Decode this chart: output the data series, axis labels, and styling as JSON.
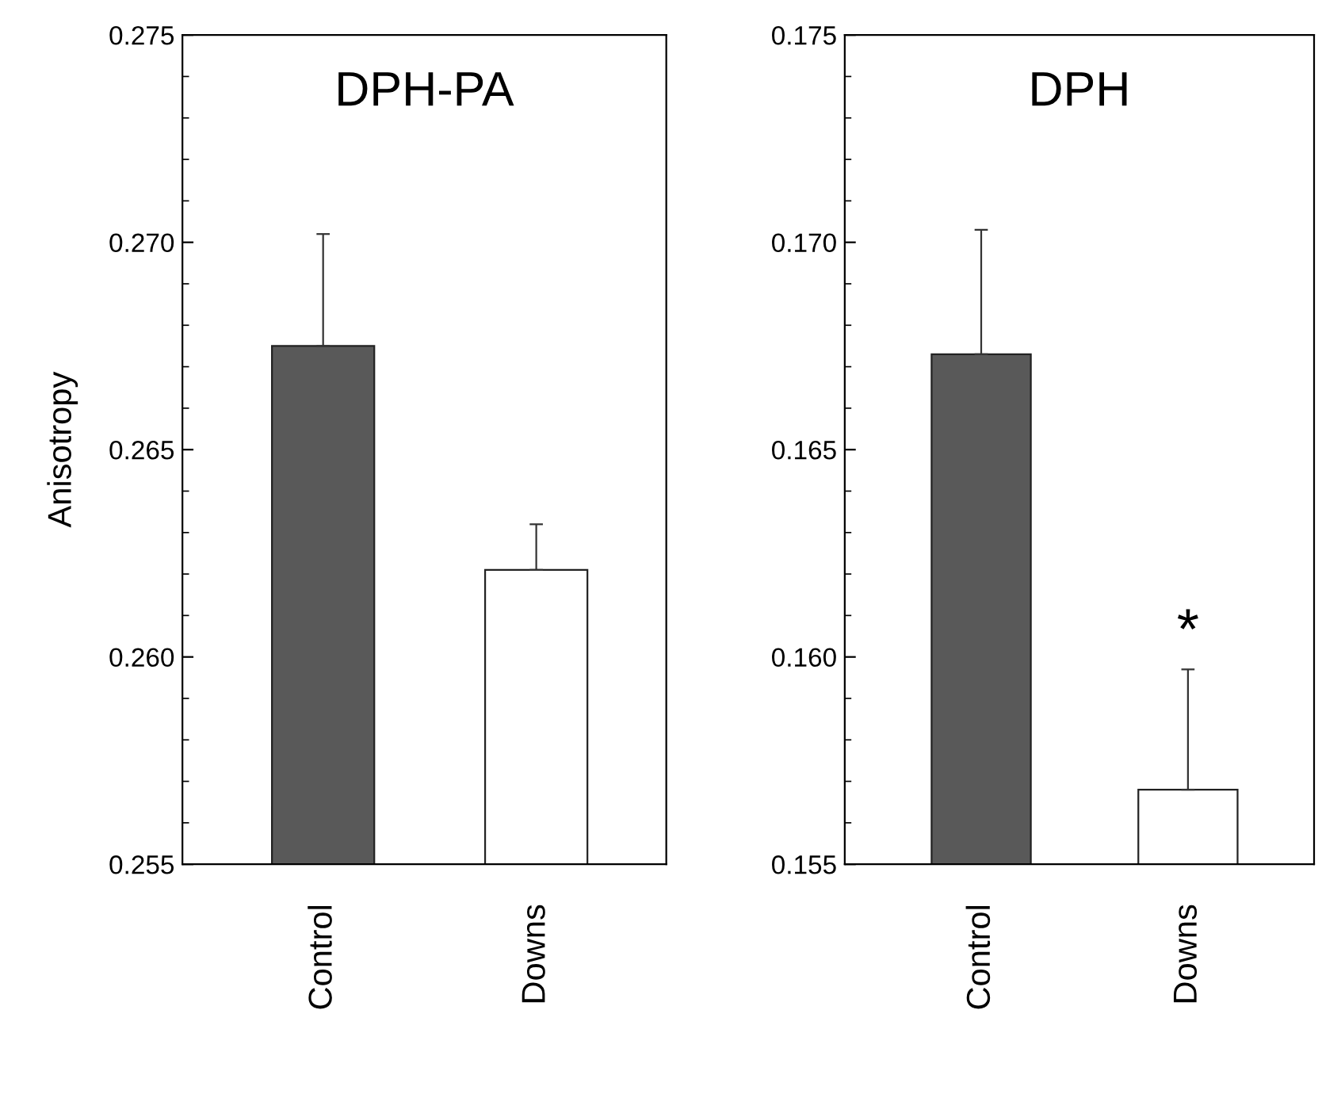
{
  "chart_data": [
    {
      "type": "bar",
      "title": "DPH-PA",
      "ylabel": "Anisotropy",
      "categories": [
        "Control",
        "Downs"
      ],
      "values": [
        0.2675,
        0.2621
      ],
      "colors": [
        "#595959",
        "#ffffff"
      ],
      "errors": [
        [
          0.2675,
          0.2702
        ],
        [
          0.2621,
          0.2632
        ]
      ],
      "ylim": [
        0.255,
        0.275
      ],
      "yticks": [
        {
          "value": 0.255,
          "label": "0.255"
        },
        {
          "value": 0.26,
          "label": "0.260"
        },
        {
          "value": 0.265,
          "label": "0.265"
        },
        {
          "value": 0.27,
          "label": "0.270"
        },
        {
          "value": 0.275,
          "label": "0.275"
        }
      ],
      "grid": false,
      "legend": false
    },
    {
      "type": "bar",
      "title": "DPH",
      "categories": [
        "Control",
        "Downs"
      ],
      "values": [
        0.1673,
        0.1568
      ],
      "colors": [
        "#595959",
        "#ffffff"
      ],
      "errors": [
        [
          0.1673,
          0.1703
        ],
        [
          0.1568,
          0.1597
        ]
      ],
      "ylim": [
        0.155,
        0.175
      ],
      "yticks": [
        {
          "value": 0.155,
          "label": "0.155"
        },
        {
          "value": 0.16,
          "label": "0.160"
        },
        {
          "value": 0.165,
          "label": "0.165"
        },
        {
          "value": 0.17,
          "label": "0.170"
        },
        {
          "value": 0.175,
          "label": "0.175"
        }
      ],
      "grid": false,
      "legend": false,
      "annotations": [
        "*"
      ]
    }
  ]
}
